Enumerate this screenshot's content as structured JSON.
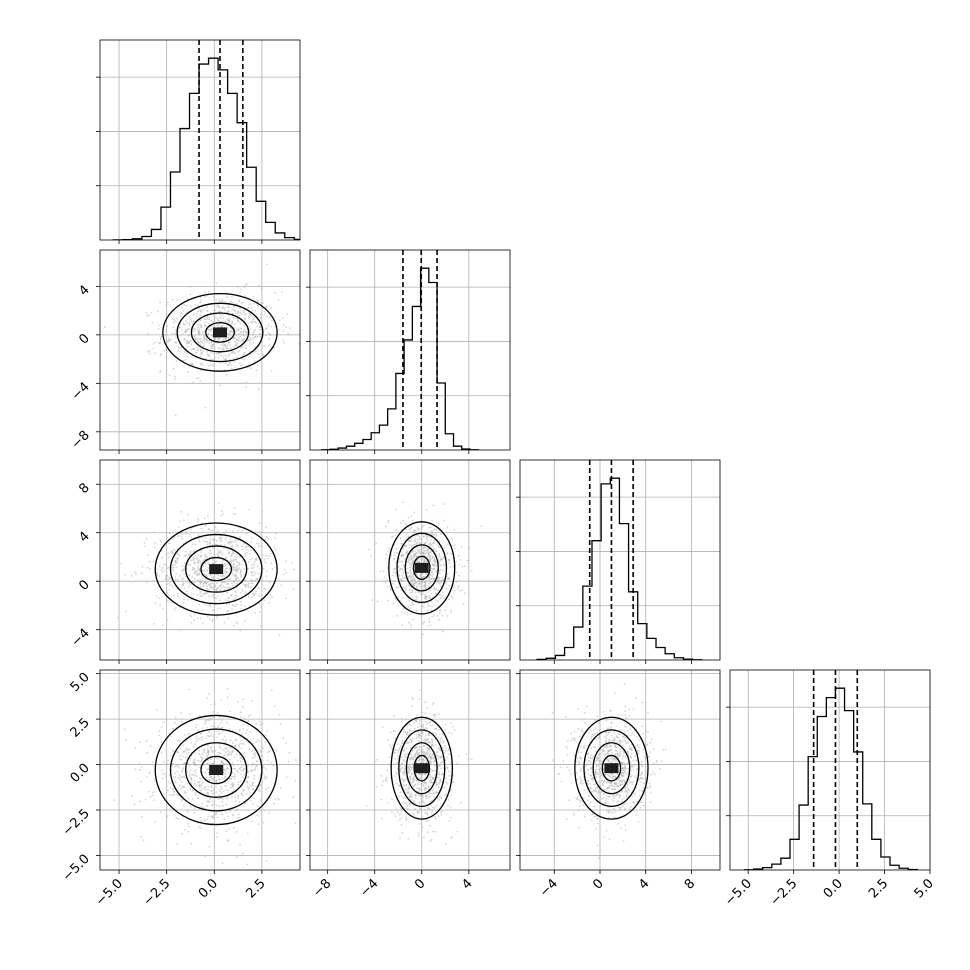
{
  "chart_data": {
    "type": "corner",
    "n_params": 4,
    "grid": true,
    "quantiles": [
      0.16,
      0.5,
      0.84
    ],
    "params": [
      {
        "xlim": [
          -6,
          4.5
        ],
        "ylim": [
          -6,
          5.5
        ],
        "xticks": [
          -5,
          -2.5,
          0,
          2.5
        ],
        "xtick_labels": [
          "−5.0",
          "−2.5",
          "0.0",
          "2.5"
        ]
      },
      {
        "xlim": [
          -9.5,
          7.5
        ],
        "ylim": [
          -9.5,
          7
        ],
        "xticks": [
          -8,
          -4,
          0,
          4
        ],
        "xtick_labels": [
          "−8",
          "−4",
          "0",
          "4"
        ],
        "yticks": [
          -8,
          -4,
          0,
          4
        ],
        "ytick_labels": [
          "−8",
          "−4",
          "0",
          "4"
        ]
      },
      {
        "xlim": [
          -7,
          10.5
        ],
        "ylim": [
          -6.5,
          10
        ],
        "xticks": [
          -4,
          0,
          4,
          8
        ],
        "xtick_labels": [
          "−4",
          "0",
          "4",
          "8"
        ],
        "yticks": [
          -4,
          0,
          4,
          8
        ],
        "ytick_labels": [
          "−4",
          "0",
          "4",
          "8"
        ]
      },
      {
        "xlim": [
          -6,
          5
        ],
        "ylim": [
          -5.8,
          5.2
        ],
        "xticks": [
          -5,
          -2.5,
          0,
          2.5,
          5
        ],
        "xtick_labels": [
          "−5.0",
          "−2.5",
          "0.0",
          "2.5",
          "5.0"
        ],
        "yticks": [
          -5,
          -2.5,
          0,
          2.5,
          5
        ],
        "ytick_labels": [
          "−5.0",
          "−2.5",
          "0.0",
          "2.5",
          "5.0"
        ]
      }
    ],
    "histograms": [
      {
        "edges": [
          -5.3,
          -4.8,
          -4.3,
          -3.8,
          -3.3,
          -2.8,
          -2.3,
          -1.8,
          -1.3,
          -0.8,
          -0.3,
          0.2,
          0.7,
          1.2,
          1.7,
          2.2,
          2.7,
          3.2,
          3.7,
          4.2,
          4.5
        ],
        "counts": [
          1,
          3,
          10,
          30,
          90,
          280,
          580,
          950,
          1250,
          1500,
          1550,
          1450,
          1250,
          1000,
          620,
          330,
          150,
          60,
          20,
          5
        ],
        "quantiles": [
          -0.8,
          0.3,
          1.5
        ]
      },
      {
        "edges": [
          -8.5,
          -7.8,
          -7.1,
          -6.4,
          -5.7,
          -5.0,
          -4.3,
          -3.6,
          -2.9,
          -2.2,
          -1.5,
          -0.8,
          -0.1,
          0.6,
          1.3,
          2.0,
          2.7,
          3.4,
          4.1,
          4.8
        ],
        "counts": [
          2,
          8,
          20,
          40,
          70,
          110,
          180,
          260,
          430,
          800,
          1150,
          1500,
          1900,
          1750,
          700,
          170,
          40,
          10,
          2
        ],
        "quantiles": [
          -1.6,
          -0.05,
          1.3
        ]
      },
      {
        "edges": [
          -5.5,
          -4.7,
          -3.9,
          -3.1,
          -2.3,
          -1.5,
          -0.7,
          0.1,
          0.9,
          1.7,
          2.5,
          3.3,
          4.1,
          4.9,
          5.7,
          6.5,
          7.3,
          8.1,
          8.9
        ],
        "counts": [
          5,
          15,
          40,
          110,
          290,
          650,
          1050,
          1550,
          1600,
          1200,
          600,
          320,
          190,
          110,
          55,
          20,
          8,
          2
        ],
        "quantiles": [
          -0.9,
          1.0,
          2.9
        ]
      },
      {
        "edges": [
          -5.2,
          -4.7,
          -4.2,
          -3.7,
          -3.2,
          -2.7,
          -2.2,
          -1.7,
          -1.2,
          -0.7,
          -0.2,
          0.3,
          0.8,
          1.3,
          1.8,
          2.3,
          2.8,
          3.3,
          3.8,
          4.3
        ],
        "counts": [
          2,
          8,
          20,
          50,
          100,
          260,
          550,
          960,
          1300,
          1460,
          1540,
          1350,
          1000,
          560,
          260,
          110,
          40,
          15,
          4
        ],
        "quantiles": [
          -1.4,
          -0.2,
          1.0
        ]
      }
    ],
    "pairs": [
      {
        "i": 1,
        "j": 0,
        "mean": [
          0.3,
          0.2
        ],
        "sd": [
          1.5,
          1.6
        ],
        "rho": 0.05
      },
      {
        "i": 2,
        "j": 0,
        "mean": [
          0.1,
          1.0
        ],
        "sd": [
          1.6,
          1.9
        ],
        "rho": 0.0
      },
      {
        "i": 2,
        "j": 1,
        "mean": [
          0.0,
          1.1
        ],
        "sd": [
          1.4,
          1.9
        ],
        "rho": -0.1
      },
      {
        "i": 3,
        "j": 0,
        "mean": [
          0.1,
          -0.3
        ],
        "sd": [
          1.6,
          1.5
        ],
        "rho": 0.05
      },
      {
        "i": 3,
        "j": 1,
        "mean": [
          0.0,
          -0.2
        ],
        "sd": [
          1.3,
          1.4
        ],
        "rho": 0.0
      },
      {
        "i": 3,
        "j": 2,
        "mean": [
          1.0,
          -0.2
        ],
        "sd": [
          1.6,
          1.4
        ],
        "rho": 0.0
      }
    ]
  }
}
